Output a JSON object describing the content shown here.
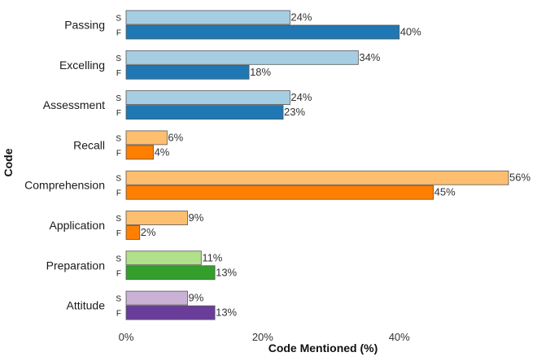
{
  "chart_data": {
    "type": "bar",
    "orientation": "horizontal",
    "title": "",
    "xlabel": "Code Mentioned (%)",
    "ylabel": "Code",
    "xlim": [
      0,
      56
    ],
    "x_ticks": [
      0,
      20,
      40
    ],
    "x_tick_labels": [
      "0%",
      "20%",
      "40%"
    ],
    "series_labels": [
      "S",
      "F"
    ],
    "categories": [
      "Passing",
      "Excelling",
      "Assessment",
      "Recall",
      "Comprehension",
      "Application",
      "Preparation",
      "Attitude"
    ],
    "groups": [
      {
        "category": "Passing",
        "S": 24,
        "F": 40,
        "S_label": "24%",
        "F_label": "40%",
        "S_color": "#a6cee3",
        "F_color": "#1f78b4"
      },
      {
        "category": "Excelling",
        "S": 34,
        "F": 18,
        "S_label": "34%",
        "F_label": "18%",
        "S_color": "#a6cee3",
        "F_color": "#1f78b4"
      },
      {
        "category": "Assessment",
        "S": 24,
        "F": 23,
        "S_label": "24%",
        "F_label": "23%",
        "S_color": "#a6cee3",
        "F_color": "#1f78b4"
      },
      {
        "category": "Recall",
        "S": 6,
        "F": 4,
        "S_label": "6%",
        "F_label": "4%",
        "S_color": "#fdbf6f",
        "F_color": "#ff7f00"
      },
      {
        "category": "Comprehension",
        "S": 56,
        "F": 45,
        "S_label": "56%",
        "F_label": "45%",
        "S_color": "#fdbf6f",
        "F_color": "#ff7f00"
      },
      {
        "category": "Application",
        "S": 9,
        "F": 2,
        "S_label": "9%",
        "F_label": "2%",
        "S_color": "#fdbf6f",
        "F_color": "#ff7f00"
      },
      {
        "category": "Preparation",
        "S": 11,
        "F": 13,
        "S_label": "11%",
        "F_label": "13%",
        "S_color": "#b2df8a",
        "F_color": "#33a02c"
      },
      {
        "category": "Attitude",
        "S": 9,
        "F": 13,
        "S_label": "9%",
        "F_label": "13%",
        "S_color": "#cab2d6",
        "F_color": "#6a3d9a"
      }
    ]
  }
}
